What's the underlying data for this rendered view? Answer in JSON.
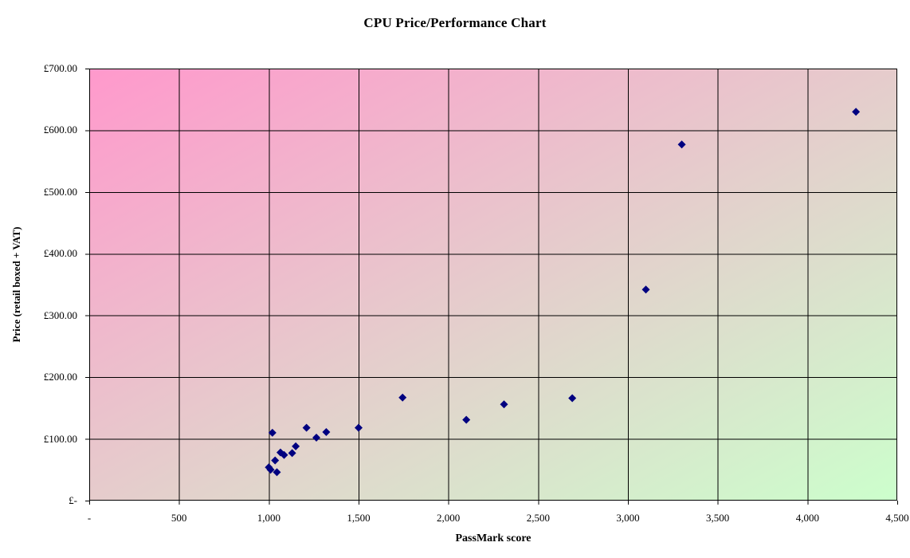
{
  "chart_data": {
    "type": "scatter",
    "title": "CPU Price/Performance Chart",
    "xlabel": "PassMark score",
    "ylabel": "Price (retail boxed + VAT)",
    "xlim": [
      0,
      4500
    ],
    "ylim": [
      0,
      700
    ],
    "x_tick_interval": 500,
    "y_tick_interval": 100,
    "x_tick_labels": [
      "-",
      "500",
      "1,000",
      "1,500",
      "2,000",
      "2,500",
      "3,000",
      "3,500",
      "4,000",
      "4,500"
    ],
    "y_tick_labels": [
      "£-",
      "£100.00",
      "£200.00",
      "£300.00",
      "£400.00",
      "£500.00",
      "£600.00",
      "£700.00"
    ],
    "grid": true,
    "legend": false,
    "marker": {
      "shape": "diamond",
      "color": "#000080",
      "size": 10
    },
    "gridline_color": "#000000",
    "border_color": "#000000",
    "plot_background": {
      "type": "gradient",
      "direction": "top-left to bottom-right",
      "from": "#ff99cc",
      "to": "#ccffcc"
    },
    "points": [
      {
        "x": 1000,
        "y": 54
      },
      {
        "x": 1010,
        "y": 50
      },
      {
        "x": 1020,
        "y": 110
      },
      {
        "x": 1035,
        "y": 65
      },
      {
        "x": 1045,
        "y": 46
      },
      {
        "x": 1065,
        "y": 78
      },
      {
        "x": 1085,
        "y": 74
      },
      {
        "x": 1130,
        "y": 77
      },
      {
        "x": 1150,
        "y": 88
      },
      {
        "x": 1210,
        "y": 118
      },
      {
        "x": 1265,
        "y": 102
      },
      {
        "x": 1320,
        "y": 111
      },
      {
        "x": 1500,
        "y": 118
      },
      {
        "x": 1745,
        "y": 167
      },
      {
        "x": 2100,
        "y": 131
      },
      {
        "x": 2310,
        "y": 156
      },
      {
        "x": 2690,
        "y": 166
      },
      {
        "x": 3100,
        "y": 342
      },
      {
        "x": 3300,
        "y": 577
      },
      {
        "x": 4270,
        "y": 630
      }
    ]
  }
}
